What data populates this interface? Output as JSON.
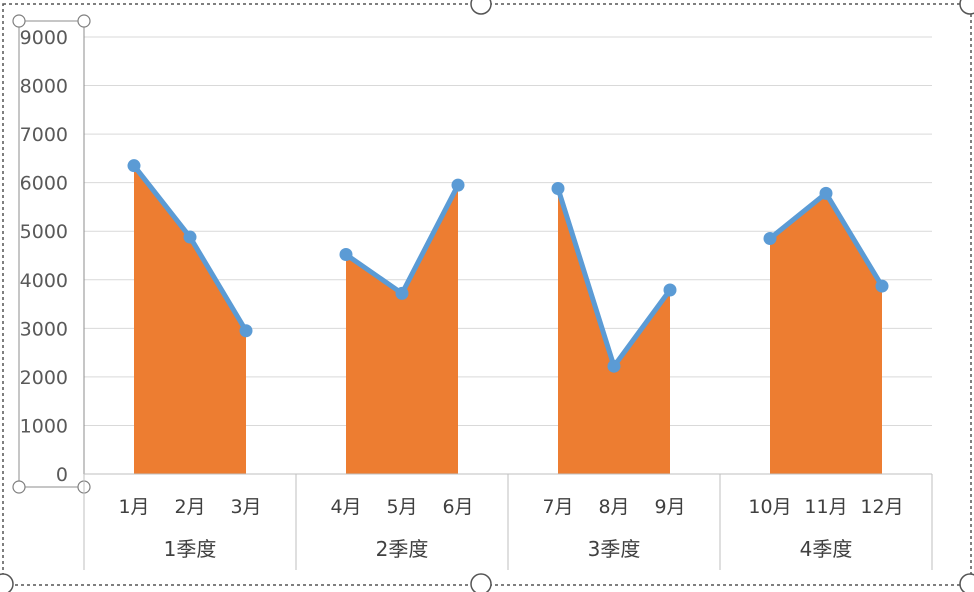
{
  "chart_data": {
    "type": "area",
    "title": "",
    "xlabel": "",
    "ylabel": "",
    "ylim": [
      0,
      9000
    ],
    "yticks": [
      0,
      1000,
      2000,
      3000,
      4000,
      5000,
      6000,
      7000,
      8000,
      9000
    ],
    "grid": true,
    "legend": "none",
    "groups": [
      {
        "label": "1季度",
        "categories": [
          "1月",
          "2月",
          "3月"
        ],
        "values": [
          6350,
          4880,
          2950
        ]
      },
      {
        "label": "2季度",
        "categories": [
          "4月",
          "5月",
          "6月"
        ],
        "values": [
          4520,
          3720,
          5950
        ]
      },
      {
        "label": "3季度",
        "categories": [
          "7月",
          "8月",
          "9月"
        ],
        "values": [
          5880,
          2220,
          3790
        ]
      },
      {
        "label": "4季度",
        "categories": [
          "10月",
          "11月",
          "12月"
        ],
        "values": [
          4850,
          5780,
          3870
        ]
      }
    ],
    "colors": {
      "area": "#ED7D31",
      "line": "#5B9BD5",
      "grid": "#D9D9D9",
      "axis": "#BFBFBF"
    }
  }
}
